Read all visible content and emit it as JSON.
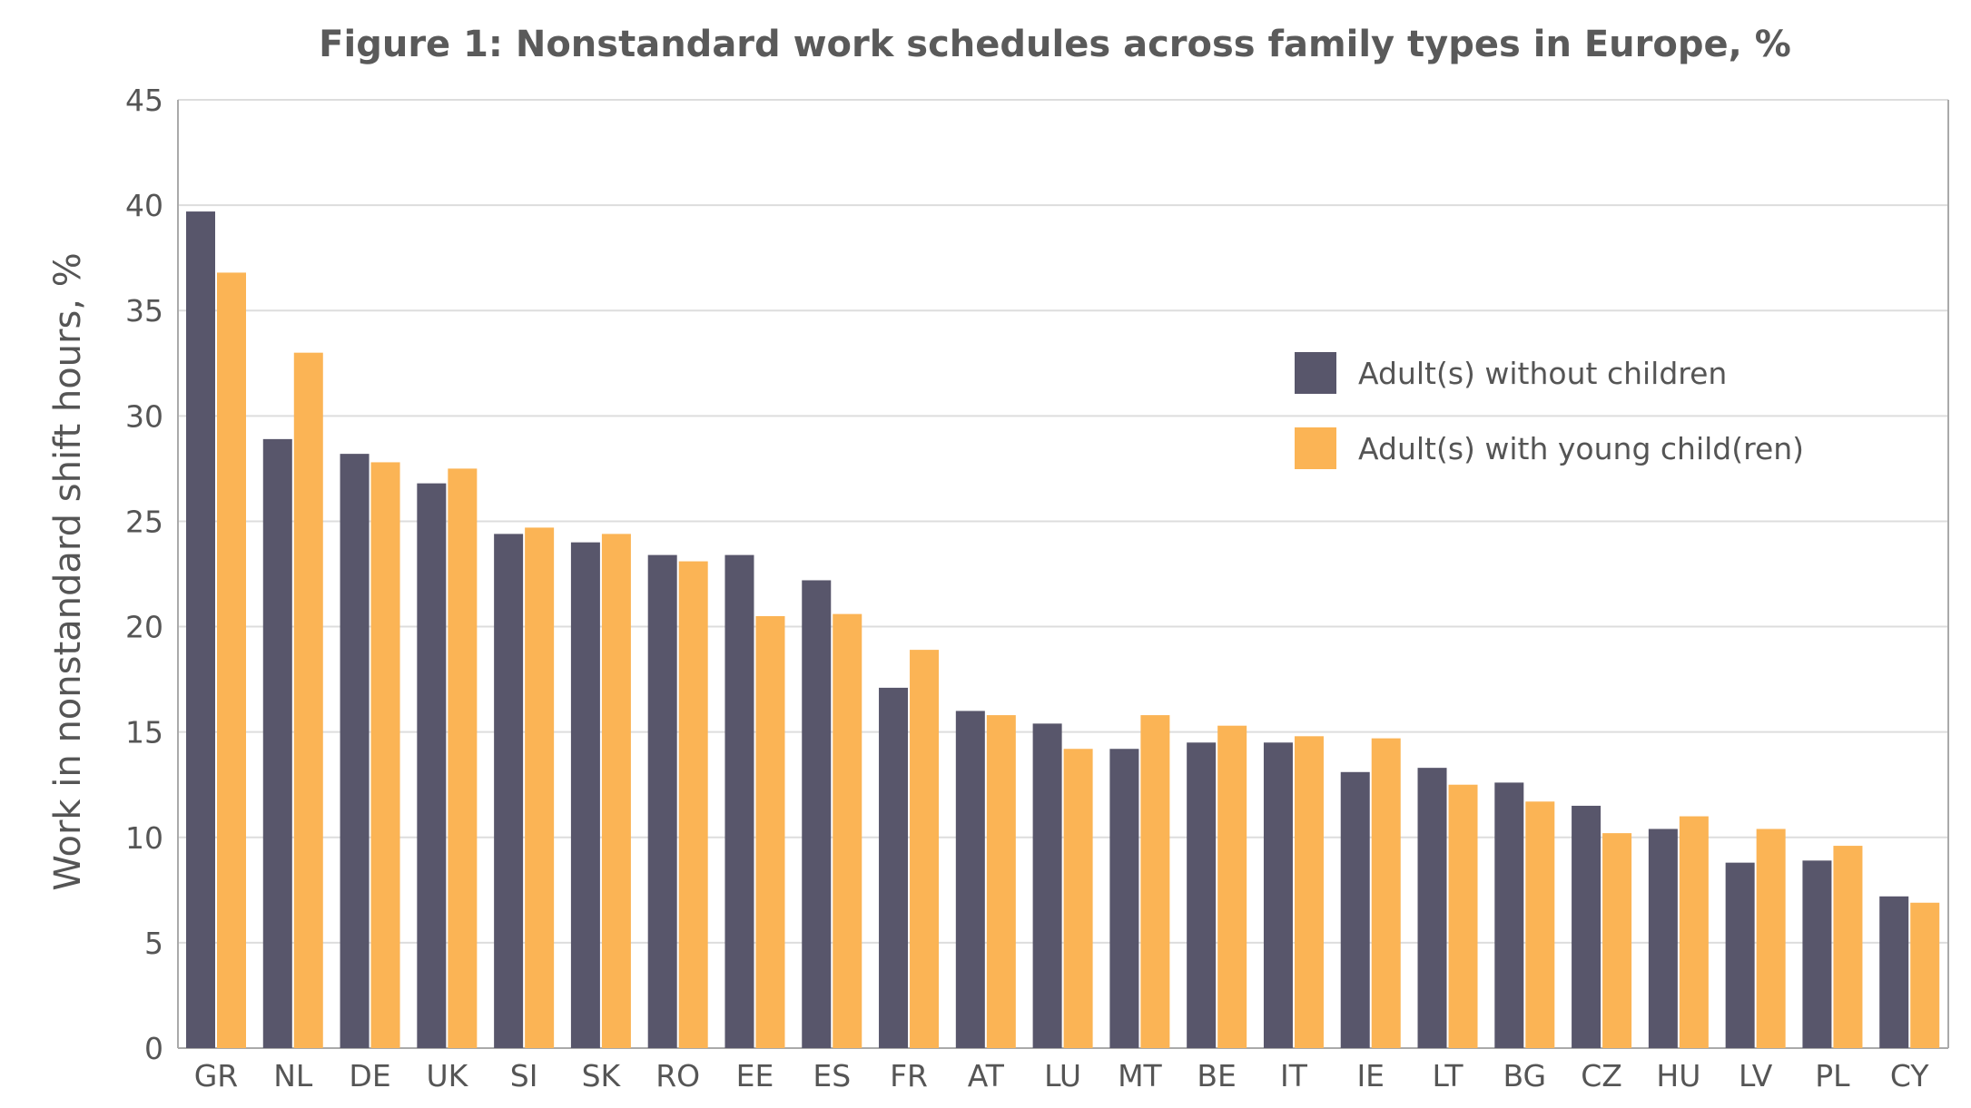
{
  "chart_data": {
    "type": "bar",
    "title": "Figure 1: Nonstandard work schedules across family types in Europe, %",
    "xlabel": "",
    "ylabel": "Work in nonstandard shift hours, %",
    "ylim": [
      0,
      45
    ],
    "yticks": [
      0,
      5,
      10,
      15,
      20,
      25,
      30,
      35,
      40,
      45
    ],
    "grid": true,
    "legend_position": "right",
    "categories": [
      "GR",
      "NL",
      "DE",
      "UK",
      "SI",
      "SK",
      "RO",
      "EE",
      "ES",
      "FR",
      "AT",
      "LU",
      "MT",
      "BE",
      "IT",
      "IE",
      "LT",
      "BG",
      "CZ",
      "HU",
      "LV",
      "PL",
      "CY"
    ],
    "series": [
      {
        "name": "Adult(s) without children",
        "color": "#58566b",
        "values": [
          39.7,
          28.9,
          28.2,
          26.8,
          24.4,
          24.0,
          23.4,
          23.4,
          22.2,
          17.1,
          16.0,
          15.4,
          14.2,
          14.5,
          14.5,
          13.1,
          13.3,
          12.6,
          11.5,
          10.4,
          8.8,
          8.9,
          7.2
        ]
      },
      {
        "name": "Adult(s) with young child(ren)",
        "color": "#fbb455",
        "values": [
          36.8,
          33.0,
          27.8,
          27.5,
          24.7,
          24.4,
          23.1,
          20.5,
          20.6,
          18.9,
          15.8,
          14.2,
          15.8,
          15.3,
          14.8,
          14.7,
          12.5,
          11.7,
          10.2,
          11.0,
          10.4,
          9.6,
          6.9
        ]
      }
    ]
  }
}
